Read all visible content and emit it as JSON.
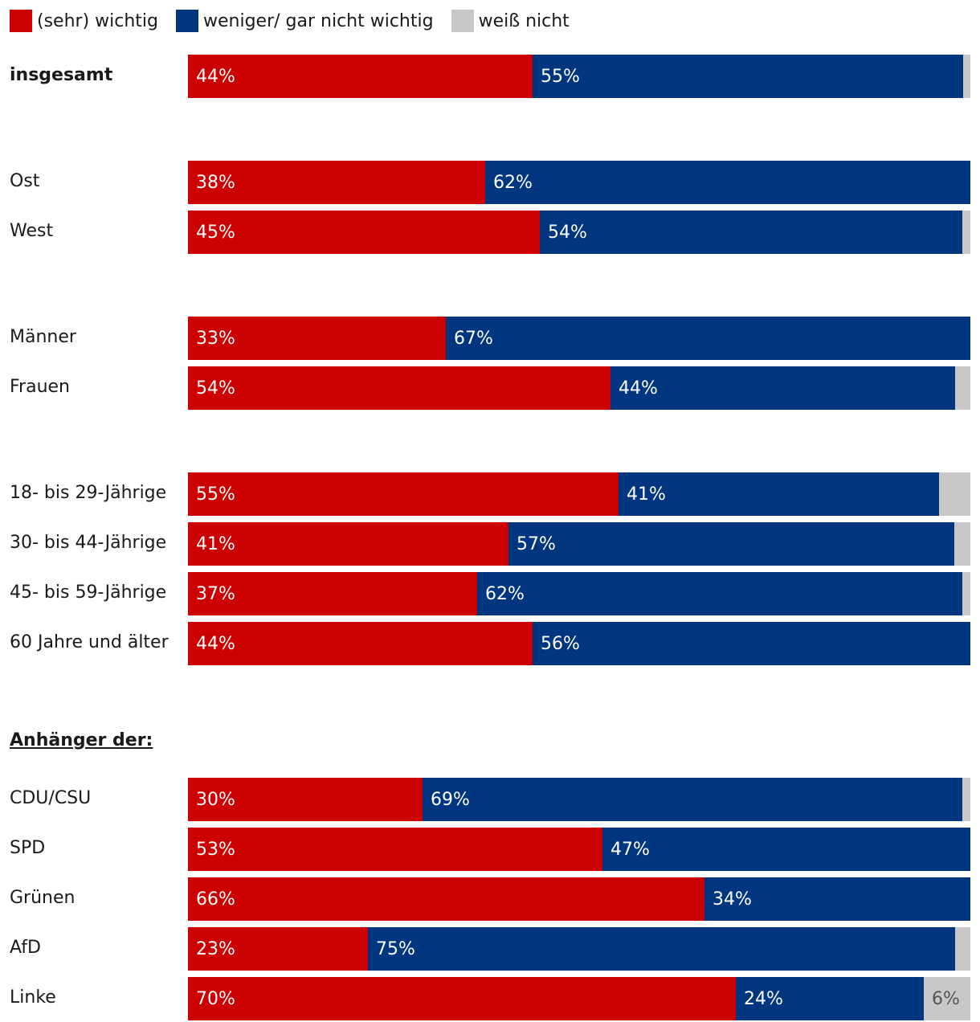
{
  "chart_data": {
    "type": "bar",
    "orientation": "horizontal-stacked",
    "legend_position": "top-left",
    "legend": [
      {
        "label": "(sehr) wichtig",
        "color": "#cc0000"
      },
      {
        "label": "weniger/ gar nicht wichtig",
        "color": "#003580"
      },
      {
        "label": "weiß nicht",
        "color": "#c8c8c8"
      }
    ],
    "groups": [
      {
        "rows": [
          {
            "label": "insgesamt",
            "bold": true,
            "values": [
              44,
              55,
              1
            ],
            "labels": [
              "44%",
              "55%",
              ""
            ]
          }
        ]
      },
      {
        "rows": [
          {
            "label": "Ost",
            "values": [
              38,
              62,
              0
            ],
            "labels": [
              "38%",
              "62%",
              ""
            ]
          },
          {
            "label": "West",
            "values": [
              45,
              54,
              1
            ],
            "labels": [
              "45%",
              "54%",
              ""
            ]
          }
        ]
      },
      {
        "rows": [
          {
            "label": "Männer",
            "values": [
              33,
              67,
              0
            ],
            "labels": [
              "33%",
              "67%",
              ""
            ]
          },
          {
            "label": "Frauen",
            "values": [
              54,
              44,
              2
            ],
            "labels": [
              "54%",
              "44%",
              ""
            ]
          }
        ]
      },
      {
        "rows": [
          {
            "label": "18- bis 29-Jährige",
            "values": [
              55,
              41,
              4
            ],
            "labels": [
              "55%",
              "41%",
              ""
            ]
          },
          {
            "label": "30- bis 44-Jährige",
            "values": [
              41,
              57,
              2
            ],
            "labels": [
              "41%",
              "57%",
              ""
            ]
          },
          {
            "label": "45- bis 59-Jährige",
            "values": [
              37,
              62,
              1
            ],
            "labels": [
              "37%",
              "62%",
              ""
            ]
          },
          {
            "label": "60 Jahre und älter",
            "values": [
              44,
              56,
              0
            ],
            "labels": [
              "44%",
              "56%",
              ""
            ]
          }
        ]
      },
      {
        "heading": "Anhänger der:",
        "rows": [
          {
            "label": "CDU/CSU",
            "values": [
              30,
              69,
              1
            ],
            "labels": [
              "30%",
              "69%",
              ""
            ]
          },
          {
            "label": "SPD",
            "values": [
              53,
              47,
              0
            ],
            "labels": [
              "53%",
              "47%",
              ""
            ]
          },
          {
            "label": "Grünen",
            "values": [
              66,
              34,
              0
            ],
            "labels": [
              "66%",
              "34%",
              ""
            ]
          },
          {
            "label": "AfD",
            "values": [
              23,
              75,
              2
            ],
            "labels": [
              "23%",
              "75%",
              ""
            ]
          },
          {
            "label": "Linke",
            "values": [
              70,
              24,
              6
            ],
            "labels": [
              "70%",
              "24%",
              "6%"
            ]
          }
        ]
      }
    ]
  }
}
